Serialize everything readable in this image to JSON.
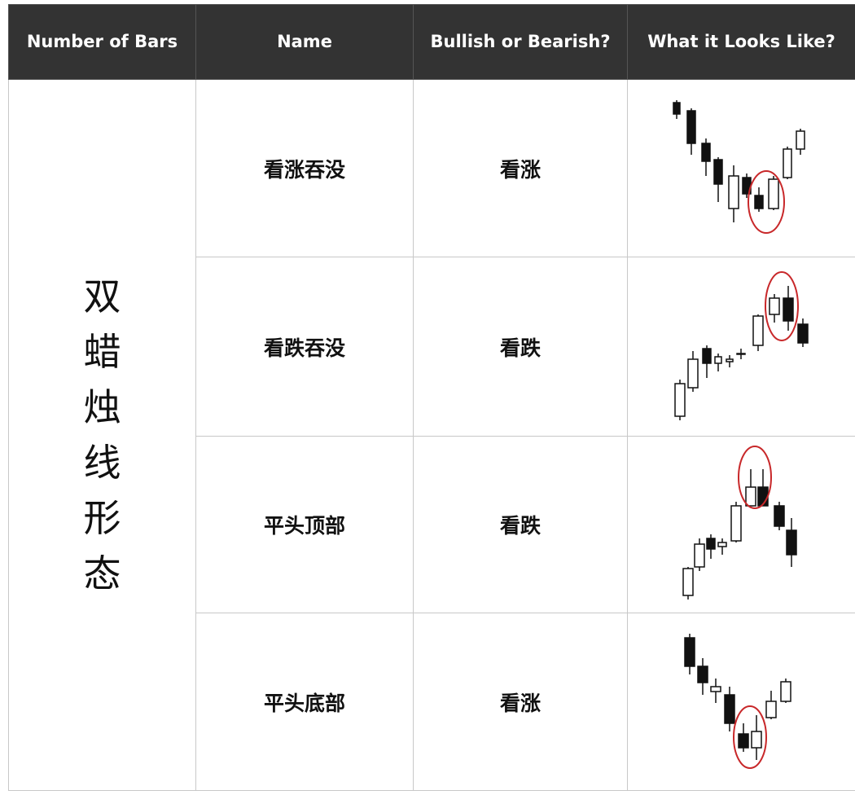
{
  "header": [
    "Number of Bars",
    "Name",
    "Bullish or Bearish?",
    "What it Looks Like?"
  ],
  "group_label": "双蜡烛线形态",
  "rows": [
    [
      "看涨吞没",
      "看涨"
    ],
    [
      "看跌吞没",
      "看跌"
    ],
    [
      "平头顶部",
      "看跌"
    ],
    [
      "平头底部",
      "看涨"
    ]
  ]
}
